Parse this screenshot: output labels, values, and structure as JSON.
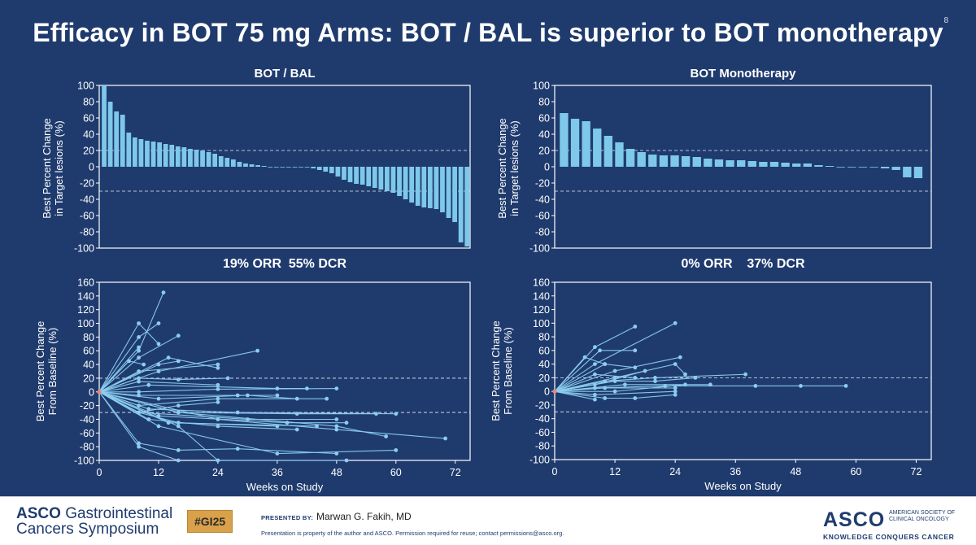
{
  "slide": {
    "title": "Efficacy in BOT 75 mg Arms: BOT / BAL is superior to BOT monotherapy",
    "page_number": "8"
  },
  "panels": {
    "left_title": "BOT / BAL",
    "right_title": "BOT Monotherapy",
    "left_stat": "19% ORR  55% DCR",
    "right_stat": "0% ORR    37% DCR"
  },
  "footer": {
    "symposium_brand": "ASCO",
    "symposium_line1": "Gastrointestinal",
    "symposium_line2": "Cancers Symposium",
    "hashtag": "#GI25",
    "presented_by_label": "PRESENTED BY:",
    "presenter": "Marwan G. Fakih, MD",
    "disclaimer": "Presentation is property of the author and ASCO. Permission required for reuse; contact permissions@asco.org.",
    "asco_logo": "ASCO",
    "asco_full_name_1": "AMERICAN SOCIETY OF",
    "asco_full_name_2": "CLINICAL ONCOLOGY",
    "asco_tagline": "KNOWLEDGE CONQUERS CANCER"
  },
  "colors": {
    "background": "#1f3b6e",
    "bar": "#7ec8ea",
    "line": "#8ccdee",
    "axis": "#ffffff"
  },
  "chart_data": [
    {
      "type": "bar",
      "subtype": "waterfall",
      "title": "BOT / BAL",
      "ylabel": "Best Percent Change in Target lesions (%)",
      "ylim": [
        -100,
        100
      ],
      "yticks": [
        100,
        80,
        60,
        40,
        20,
        0,
        -20,
        -40,
        -60,
        -80,
        -100
      ],
      "reference_lines": [
        20,
        -30
      ],
      "values": [
        100,
        80,
        68,
        64,
        42,
        36,
        34,
        32,
        31,
        30,
        28,
        27,
        25,
        24,
        22,
        21,
        20,
        18,
        16,
        13,
        11,
        9,
        6,
        4,
        3,
        2,
        1,
        0,
        0,
        0,
        0,
        0,
        0,
        0,
        -2,
        -4,
        -6,
        -8,
        -12,
        -16,
        -19,
        -21,
        -22,
        -24,
        -26,
        -28,
        -30,
        -32,
        -36,
        -40,
        -44,
        -48,
        -50,
        -51,
        -52,
        -56,
        -63,
        -68,
        -93,
        -98
      ]
    },
    {
      "type": "bar",
      "subtype": "waterfall",
      "title": "BOT Monotherapy",
      "ylabel": "Best Percent Change in Target lesions (%)",
      "ylim": [
        -100,
        100
      ],
      "yticks": [
        100,
        80,
        60,
        40,
        20,
        0,
        -20,
        -40,
        -60,
        -80,
        -100
      ],
      "reference_lines": [
        20,
        -30
      ],
      "values": [
        66,
        59,
        56,
        47,
        38,
        30,
        22,
        18,
        15,
        14,
        14,
        13,
        12,
        10,
        9,
        8,
        8,
        7,
        6,
        6,
        5,
        4,
        4,
        2,
        1,
        0,
        0,
        0,
        0,
        -2,
        -4,
        -13,
        -14
      ]
    },
    {
      "type": "line",
      "subtype": "spider",
      "xlabel": "Weeks on Study",
      "ylabel": "Best Percent Change From Baseline (%)",
      "xlim": [
        0,
        75
      ],
      "xticks": [
        0,
        12,
        24,
        36,
        48,
        60,
        72
      ],
      "ylim": [
        -100,
        160
      ],
      "yticks": [
        160,
        140,
        120,
        100,
        80,
        60,
        40,
        20,
        0,
        -20,
        -40,
        -60,
        -80,
        -100
      ],
      "reference_lines": [
        20,
        -30
      ],
      "series": [
        {
          "x": [
            0,
            8,
            12
          ],
          "y": [
            0,
            100,
            70
          ]
        },
        {
          "x": [
            0,
            8,
            12
          ],
          "y": [
            0,
            80,
            100
          ]
        },
        {
          "x": [
            0,
            8,
            13
          ],
          "y": [
            0,
            60,
            145
          ]
        },
        {
          "x": [
            0,
            8
          ],
          "y": [
            0,
            65
          ]
        },
        {
          "x": [
            0,
            6,
            9
          ],
          "y": [
            0,
            45,
            40
          ]
        },
        {
          "x": [
            0,
            8,
            16
          ],
          "y": [
            0,
            50,
            82
          ]
        },
        {
          "x": [
            0,
            12,
            16
          ],
          "y": [
            0,
            40,
            45
          ]
        },
        {
          "x": [
            0,
            8,
            24
          ],
          "y": [
            0,
            30,
            40
          ]
        },
        {
          "x": [
            0,
            12,
            32
          ],
          "y": [
            0,
            30,
            60
          ]
        },
        {
          "x": [
            0,
            14,
            24
          ],
          "y": [
            0,
            50,
            35
          ]
        },
        {
          "x": [
            0,
            8,
            16,
            26
          ],
          "y": [
            0,
            20,
            18,
            20
          ]
        },
        {
          "x": [
            0,
            8,
            24
          ],
          "y": [
            0,
            15,
            10
          ]
        },
        {
          "x": [
            0,
            10,
            36,
            42
          ],
          "y": [
            0,
            10,
            5,
            5
          ]
        },
        {
          "x": [
            0,
            8,
            24,
            48
          ],
          "y": [
            0,
            0,
            4,
            5
          ]
        },
        {
          "x": [
            0,
            8,
            28,
            36
          ],
          "y": [
            0,
            -5,
            -5,
            -5
          ]
        },
        {
          "x": [
            0,
            12,
            30,
            40
          ],
          "y": [
            0,
            -10,
            -5,
            -10
          ]
        },
        {
          "x": [
            0,
            8,
            24,
            46
          ],
          "y": [
            0,
            -20,
            -10,
            -10
          ]
        },
        {
          "x": [
            0,
            10,
            28,
            60
          ],
          "y": [
            0,
            -25,
            -30,
            -32
          ]
        },
        {
          "x": [
            0,
            16,
            40,
            56
          ],
          "y": [
            0,
            -30,
            -32,
            -32
          ]
        },
        {
          "x": [
            0,
            8,
            30,
            48
          ],
          "y": [
            0,
            -30,
            -40,
            -40
          ]
        },
        {
          "x": [
            0,
            12,
            38,
            50
          ],
          "y": [
            0,
            -35,
            -45,
            -45
          ]
        },
        {
          "x": [
            0,
            14,
            44
          ],
          "y": [
            0,
            -45,
            -50
          ]
        },
        {
          "x": [
            0,
            8,
            16,
            36
          ],
          "y": [
            0,
            -30,
            -45,
            -50
          ]
        },
        {
          "x": [
            0,
            10,
            24,
            40
          ],
          "y": [
            0,
            -40,
            -50,
            -55
          ]
        },
        {
          "x": [
            0,
            16,
            48,
            58
          ],
          "y": [
            0,
            -30,
            -50,
            -65
          ]
        },
        {
          "x": [
            0,
            24,
            48,
            70
          ],
          "y": [
            0,
            -40,
            -55,
            -68
          ]
        },
        {
          "x": [
            0,
            8,
            16,
            28,
            48
          ],
          "y": [
            0,
            -75,
            -85,
            -83,
            -90
          ]
        },
        {
          "x": [
            0,
            12,
            36,
            60
          ],
          "y": [
            0,
            -50,
            -90,
            -85
          ]
        },
        {
          "x": [
            0,
            8,
            16
          ],
          "y": [
            0,
            -80,
            -100
          ]
        },
        {
          "x": [
            0,
            16,
            24,
            50
          ],
          "y": [
            0,
            -50,
            -100,
            -100
          ]
        },
        {
          "x": [
            0,
            8,
            16,
            24
          ],
          "y": [
            0,
            -30,
            -20,
            -15
          ]
        }
      ]
    },
    {
      "type": "line",
      "subtype": "spider",
      "xlabel": "Weeks on Study",
      "ylabel": "Best Percent Change From Baseline (%)",
      "xlim": [
        0,
        75
      ],
      "xticks": [
        0,
        12,
        24,
        36,
        48,
        60,
        72
      ],
      "ylim": [
        -100,
        160
      ],
      "yticks": [
        160,
        140,
        120,
        100,
        80,
        60,
        40,
        20,
        0,
        -20,
        -40,
        -60,
        -80,
        -100
      ],
      "reference_lines": [
        20,
        -30
      ],
      "series": [
        {
          "x": [
            0,
            8,
            16
          ],
          "y": [
            0,
            65,
            95
          ]
        },
        {
          "x": [
            0,
            8,
            24
          ],
          "y": [
            0,
            40,
            100
          ]
        },
        {
          "x": [
            0,
            9,
            16
          ],
          "y": [
            0,
            60,
            60
          ]
        },
        {
          "x": [
            0,
            6,
            10
          ],
          "y": [
            0,
            50,
            40
          ]
        },
        {
          "x": [
            0,
            12,
            25
          ],
          "y": [
            0,
            30,
            50
          ]
        },
        {
          "x": [
            0,
            10,
            16
          ],
          "y": [
            0,
            40,
            35
          ]
        },
        {
          "x": [
            0,
            12,
            24,
            26
          ],
          "y": [
            0,
            20,
            40,
            25
          ]
        },
        {
          "x": [
            0,
            8,
            16
          ],
          "y": [
            0,
            25,
            20
          ]
        },
        {
          "x": [
            0,
            10,
            20,
            38
          ],
          "y": [
            0,
            15,
            20,
            25
          ]
        },
        {
          "x": [
            0,
            8,
            18
          ],
          "y": [
            0,
            10,
            30
          ]
        },
        {
          "x": [
            0,
            12,
            20,
            28
          ],
          "y": [
            0,
            15,
            15,
            20
          ]
        },
        {
          "x": [
            0,
            14,
            31
          ],
          "y": [
            0,
            10,
            10
          ]
        },
        {
          "x": [
            0,
            8,
            22,
            40,
            49,
            58
          ],
          "y": [
            0,
            5,
            8,
            8,
            8,
            8
          ]
        },
        {
          "x": [
            0,
            10,
            24
          ],
          "y": [
            0,
            5,
            5
          ]
        },
        {
          "x": [
            0,
            12,
            26
          ],
          "y": [
            0,
            0,
            10
          ]
        },
        {
          "x": [
            0,
            8,
            24
          ],
          "y": [
            0,
            -5,
            0
          ]
        },
        {
          "x": [
            0,
            10,
            16,
            24
          ],
          "y": [
            0,
            -10,
            -10,
            -5
          ]
        },
        {
          "x": [
            0,
            8
          ],
          "y": [
            0,
            -12
          ]
        }
      ]
    }
  ]
}
